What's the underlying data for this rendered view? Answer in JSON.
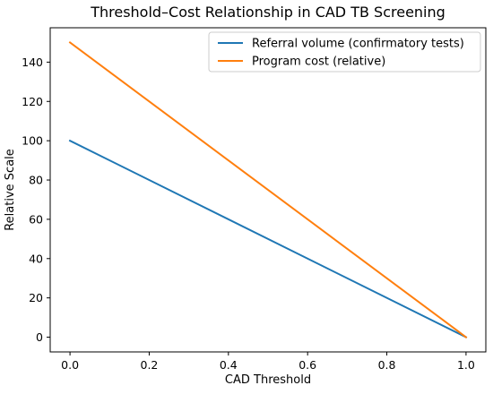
{
  "chart_data": {
    "type": "line",
    "title": "Threshold–Cost Relationship in CAD TB Screening",
    "xlabel": "CAD Threshold",
    "ylabel": "Relative Scale",
    "xlim": [
      -0.05,
      1.05
    ],
    "ylim": [
      -7.5,
      157.5
    ],
    "x_ticks": [
      0.0,
      0.2,
      0.4,
      0.6,
      0.8,
      1.0
    ],
    "x_tick_labels": [
      "0.0",
      "0.2",
      "0.4",
      "0.6",
      "0.8",
      "1.0"
    ],
    "y_ticks": [
      0,
      20,
      40,
      60,
      80,
      100,
      120,
      140
    ],
    "y_tick_labels": [
      "0",
      "20",
      "40",
      "60",
      "80",
      "100",
      "120",
      "140"
    ],
    "grid": false,
    "legend_position": "top-right",
    "series": [
      {
        "name": "Referral volume (confirmatory tests)",
        "color": "#1f77b4",
        "x": [
          0.0,
          1.0
        ],
        "y": [
          100,
          0
        ]
      },
      {
        "name": "Program cost (relative)",
        "color": "#ff7f0e",
        "x": [
          0.0,
          1.0
        ],
        "y": [
          150,
          0
        ]
      }
    ]
  }
}
